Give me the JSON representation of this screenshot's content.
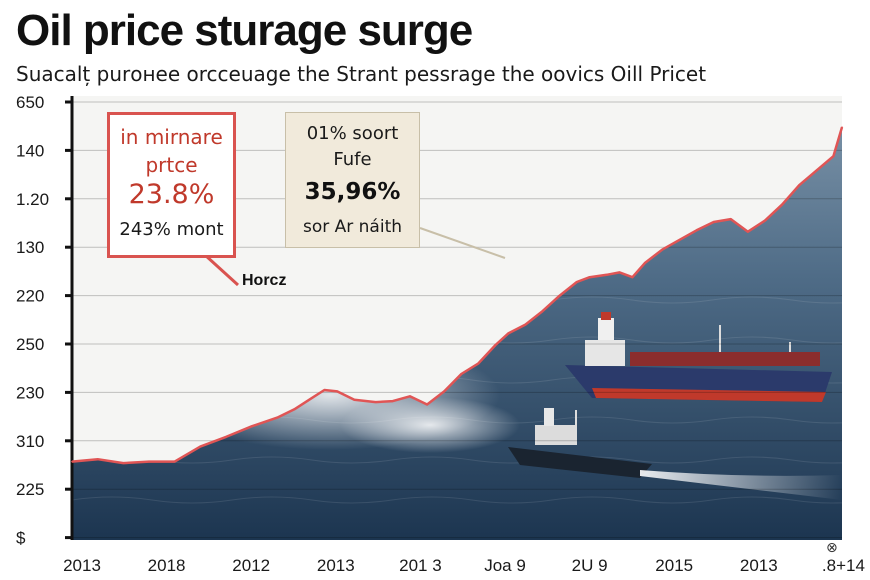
{
  "title": "Oil price sturage surge",
  "subtitle": "Suacalț purонee orcceuage the Strant pessrage the oovics Oill Pricet",
  "callout_red": {
    "line1": "in mirnare",
    "line2": "prtce",
    "value": "23.8%",
    "line4": "243% mont"
  },
  "callout_beige": {
    "line1": "01% soort",
    "line2": "Fufe",
    "value": "35,96%",
    "line4": "sor Ar náith"
  },
  "annotation": "Horcz",
  "corner_mark": "⊗",
  "colors": {
    "line": "#e05555",
    "sea_top": "#6f8aa2",
    "sea_bottom": "#1d3a57",
    "sky": "#f4f4f2",
    "accent_red": "#d9534f",
    "beige": "#f1eadb"
  },
  "chart_data": {
    "type": "area",
    "title": "Oil price sturage surge",
    "subtitle": "Suacalț purонee orcceuage the Strant pessrage the oovics Oill Pricet",
    "xlabel": "",
    "ylabel": "",
    "y_tick_labels": [
      "650",
      "140",
      "1.20",
      "130",
      "220",
      "250",
      "230",
      "310",
      "225",
      "$"
    ],
    "x_tick_labels": [
      "2013",
      "2018",
      "2012",
      "2013",
      "201 3",
      "Joa 9",
      "2U 9",
      "2015",
      "2013",
      ".8+14"
    ],
    "x_range": [
      0,
      9
    ],
    "y_tick_index_range": [
      0,
      9
    ],
    "grid": true,
    "series": [
      {
        "values": [
          [
            0.0,
            7.43
          ],
          [
            0.3,
            7.38
          ],
          [
            0.6,
            7.46
          ],
          [
            0.9,
            7.43
          ],
          [
            1.2,
            7.43
          ],
          [
            1.5,
            7.12
          ],
          [
            1.8,
            6.92
          ],
          [
            2.1,
            6.7
          ],
          [
            2.4,
            6.52
          ],
          [
            2.6,
            6.35
          ],
          [
            2.8,
            6.12
          ],
          [
            2.95,
            5.95
          ],
          [
            3.1,
            5.98
          ],
          [
            3.3,
            6.15
          ],
          [
            3.55,
            6.2
          ],
          [
            3.75,
            6.18
          ],
          [
            3.95,
            6.08
          ],
          [
            4.15,
            6.25
          ],
          [
            4.35,
            5.98
          ],
          [
            4.55,
            5.62
          ],
          [
            4.75,
            5.4
          ],
          [
            4.95,
            5.02
          ],
          [
            5.1,
            4.78
          ],
          [
            5.3,
            4.6
          ],
          [
            5.5,
            4.32
          ],
          [
            5.7,
            4.0
          ],
          [
            5.9,
            3.72
          ],
          [
            6.05,
            3.62
          ],
          [
            6.25,
            3.57
          ],
          [
            6.4,
            3.52
          ],
          [
            6.55,
            3.62
          ],
          [
            6.7,
            3.32
          ],
          [
            6.9,
            3.05
          ],
          [
            7.1,
            2.85
          ],
          [
            7.3,
            2.65
          ],
          [
            7.5,
            2.48
          ],
          [
            7.7,
            2.42
          ],
          [
            7.9,
            2.68
          ],
          [
            8.1,
            2.45
          ],
          [
            8.3,
            2.12
          ],
          [
            8.5,
            1.72
          ],
          [
            8.7,
            1.42
          ],
          [
            8.9,
            1.12
          ],
          [
            9.0,
            0.52
          ]
        ]
      }
    ]
  }
}
